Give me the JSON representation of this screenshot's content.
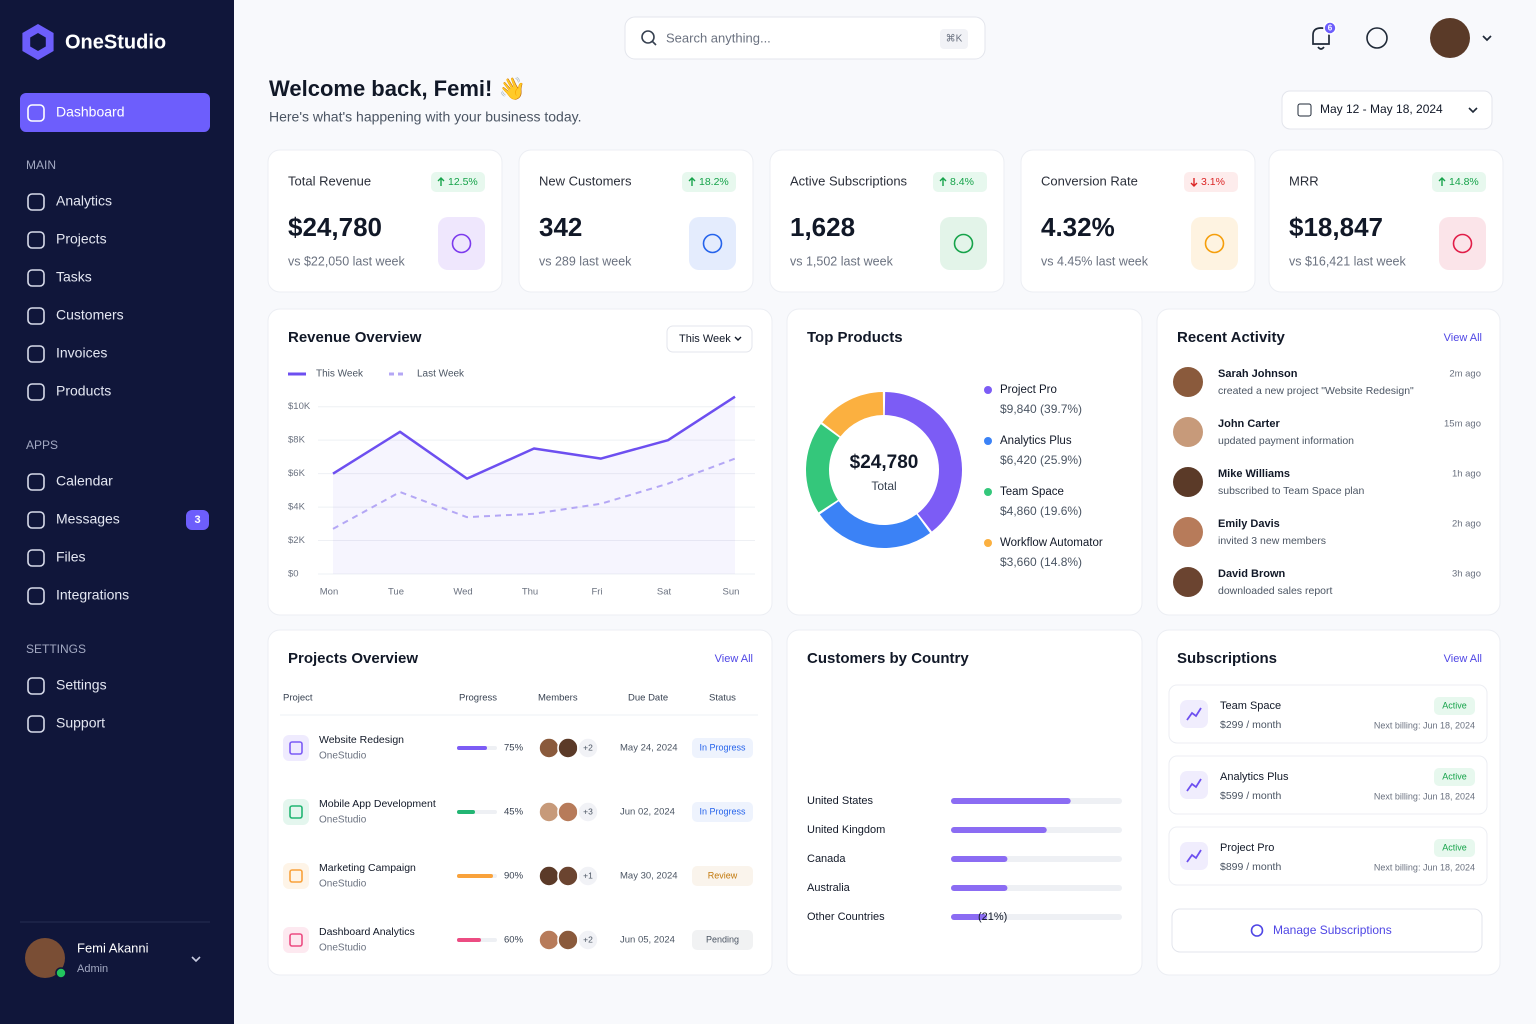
{
  "sidebar": {
    "brand": "OneStudio",
    "active": "Dashboard",
    "sections": [
      {
        "title": "MAIN",
        "items": [
          {
            "label": "Analytics"
          },
          {
            "label": "Projects"
          },
          {
            "label": "Tasks"
          },
          {
            "label": "Customers"
          },
          {
            "label": "Invoices"
          },
          {
            "label": "Products"
          }
        ]
      },
      {
        "title": "APPS",
        "items": [
          {
            "label": "Calendar"
          },
          {
            "label": "Messages",
            "badge": "3"
          },
          {
            "label": "Files"
          },
          {
            "label": "Integrations"
          }
        ]
      },
      {
        "title": "SETTINGS",
        "items": [
          {
            "label": "Settings"
          },
          {
            "label": "Support"
          }
        ]
      }
    ],
    "user": {
      "name": "Femi Akanni",
      "role": "Admin"
    }
  },
  "header": {
    "search": "Search anything...",
    "shortcut": "⌘K",
    "notifications": "6",
    "greeting": "Welcome back, Femi! 👋",
    "subtitle": "Here's what's happening with your business today.",
    "date_range": "May 12 - May 18, 2024"
  },
  "kpis": [
    {
      "label": "Total Revenue",
      "value": "$24,780",
      "change": "12.5%",
      "trend": "up",
      "comparison": "vs $22,050 last week",
      "color": "#7c3aed"
    },
    {
      "label": "New Customers",
      "value": "342",
      "change": "18.2%",
      "trend": "up",
      "comparison": "vs 289 last week",
      "color": "#2563eb"
    },
    {
      "label": "Active Subscriptions",
      "value": "1,628",
      "change": "8.4%",
      "trend": "up",
      "comparison": "vs 1,502 last week",
      "color": "#16a34a"
    },
    {
      "label": "Conversion Rate",
      "value": "4.32%",
      "change": "3.1%",
      "trend": "down",
      "comparison": "vs 4.45% last week",
      "color": "#f59e0b"
    },
    {
      "label": "MRR",
      "value": "$18,847",
      "change": "14.8%",
      "trend": "up",
      "comparison": "vs $16,421 last week",
      "color": "#e11d48"
    }
  ],
  "chart_data": [
    {
      "type": "line",
      "title": "Revenue Overview",
      "period": "This Week",
      "categories": [
        "Mon",
        "Tue",
        "Wed",
        "Thu",
        "Fri",
        "Sat",
        "Sun"
      ],
      "series": [
        {
          "name": "This Week",
          "color": "#6d4ff0",
          "style": "solid",
          "values": [
            6000,
            8500,
            5700,
            7500,
            6900,
            8000,
            10600
          ]
        },
        {
          "name": "Last Week",
          "color": "#b4a7f5",
          "style": "dashed",
          "values": [
            2700,
            4900,
            3400,
            3600,
            4200,
            5400,
            6900
          ]
        }
      ],
      "ylim": [
        0,
        11000
      ],
      "yticks": [
        {
          "value": 0,
          "label": "$0"
        },
        {
          "value": 2000,
          "label": "$2K"
        },
        {
          "value": 4000,
          "label": "$4K"
        },
        {
          "value": 6000,
          "label": "$6K"
        },
        {
          "value": 8000,
          "label": "$8K"
        },
        {
          "value": 10000,
          "label": "$10K"
        }
      ],
      "grid": true
    },
    {
      "type": "pie",
      "title": "Top Products",
      "center_value": "$24,780",
      "center_label": "Total",
      "categories": [
        "Project Pro",
        "Analytics Plus",
        "Team Space",
        "Workflow Automator"
      ],
      "values": [
        9840,
        6420,
        4860,
        3660
      ],
      "value_labels": [
        "$9,840 (39.7%)",
        "$6,420 (25.9%)",
        "$4,860 (19.6%)",
        "$3,660 (14.8%)"
      ],
      "colors": [
        "#7c5cf5",
        "#3b82f6",
        "#34c77b",
        "#fbb040"
      ]
    },
    {
      "type": "bar",
      "orientation": "horizontal",
      "title": "Customers by Country",
      "categories": [
        "United States",
        "United Kingdom",
        "Canada",
        "Australia",
        "Other Countries"
      ],
      "values": [
        70,
        56,
        33,
        33,
        21
      ],
      "value_labels": [
        null,
        null,
        null,
        null,
        "(21%)"
      ],
      "xlim": [
        0,
        100
      ],
      "color": "#8b6cf3"
    }
  ],
  "activity": {
    "title": "Recent Activity",
    "view_all": "View All",
    "items": [
      {
        "name": "Sarah Johnson",
        "action": "created a new project \"Website Redesign\"",
        "time": "2m ago"
      },
      {
        "name": "John Carter",
        "action": "updated payment information",
        "time": "15m ago"
      },
      {
        "name": "Mike Williams",
        "action": "subscribed to Team Space plan",
        "time": "1h ago"
      },
      {
        "name": "Emily Davis",
        "action": "invited 3 new members",
        "time": "2h ago"
      },
      {
        "name": "David Brown",
        "action": "downloaded sales report",
        "time": "3h ago"
      }
    ]
  },
  "projects": {
    "title": "Projects Overview",
    "view_all": "View All",
    "columns": [
      "Project",
      "Progress",
      "Members",
      "Due Date",
      "Status"
    ],
    "rows": [
      {
        "name": "Website Redesign",
        "org": "OneStudio",
        "progress": 75,
        "progress_label": "75%",
        "color": "#7c5cf5",
        "members_extra": "+2",
        "due": "May 24, 2024",
        "status": "In Progress",
        "status_color": "#2563eb"
      },
      {
        "name": "Mobile App Development",
        "org": "OneStudio",
        "progress": 45,
        "progress_label": "45%",
        "color": "#22b573",
        "members_extra": "+3",
        "due": "Jun 02, 2024",
        "status": "In Progress",
        "status_color": "#2563eb"
      },
      {
        "name": "Marketing Campaign",
        "org": "OneStudio",
        "progress": 90,
        "progress_label": "90%",
        "color": "#f9a23b",
        "members_extra": "+1",
        "due": "May 30, 2024",
        "status": "Review",
        "status_color": "#c2780a"
      },
      {
        "name": "Dashboard Analytics",
        "org": "OneStudio",
        "progress": 60,
        "progress_label": "60%",
        "color": "#ec4c82",
        "members_extra": "+2",
        "due": "Jun 05, 2024",
        "status": "Pending",
        "status_color": "#4b5563"
      }
    ]
  },
  "subscriptions": {
    "title": "Subscriptions",
    "view_all": "View All",
    "items": [
      {
        "name": "Team Space",
        "price": "$299 / month",
        "status": "Active",
        "billing": "Next billing: Jun 18, 2024"
      },
      {
        "name": "Analytics Plus",
        "price": "$599 / month",
        "status": "Active",
        "billing": "Next billing: Jun 18, 2024"
      },
      {
        "name": "Project Pro",
        "price": "$899 / month",
        "status": "Active",
        "billing": "Next billing: Jun 18, 2024"
      }
    ],
    "button": "Manage Subscriptions"
  }
}
